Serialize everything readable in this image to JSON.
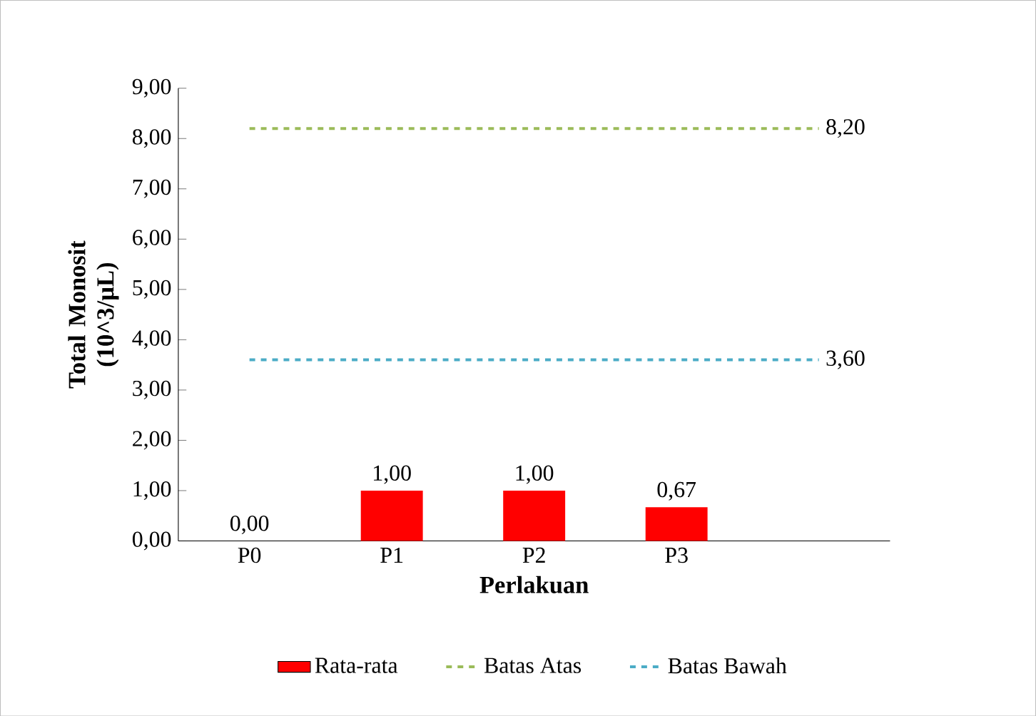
{
  "chart_data": {
    "type": "bar",
    "xlabel": "Perlakuan",
    "ylabel": "Total Monosit (10^3/µL)",
    "categories": [
      "P0",
      "P1",
      "P2",
      "P3",
      null
    ],
    "series": [
      {
        "name": "Rata-rata",
        "color": "#ff0000",
        "values": [
          0,
          1,
          1,
          0.67,
          null
        ],
        "value_labels": [
          "0,00",
          "1,00",
          "1,00",
          "0,67",
          null
        ]
      },
      {
        "name": "Batas Atas",
        "type": "line",
        "color": "#9bbb59",
        "line_style": "dashed",
        "values": [
          8.2,
          8.2,
          8.2,
          8.2,
          8.2
        ],
        "value_labels": [
          null,
          null,
          null,
          null,
          "8,20"
        ]
      },
      {
        "name": "Batas Bawah",
        "type": "line",
        "color": "#4bacc6",
        "line_style": "dashed",
        "values": [
          3.6,
          3.6,
          3.6,
          3.6,
          3.6
        ],
        "value_labels": [
          null,
          null,
          null,
          null,
          "3,60"
        ]
      }
    ],
    "ylim": [
      0,
      9
    ],
    "yticks": [
      {
        "value": 0,
        "label": "0,00"
      },
      {
        "value": 1,
        "label": "1,00"
      },
      {
        "value": 2,
        "label": "2,00"
      },
      {
        "value": 3,
        "label": "3,00"
      },
      {
        "value": 4,
        "label": "4,00"
      },
      {
        "value": 5,
        "label": "5,00"
      },
      {
        "value": 6,
        "label": "6,00"
      },
      {
        "value": 7,
        "label": "7,00"
      },
      {
        "value": 8,
        "label": "8,00"
      },
      {
        "value": 9,
        "label": "9,00"
      }
    ],
    "legend": "bottom",
    "grid": false
  }
}
